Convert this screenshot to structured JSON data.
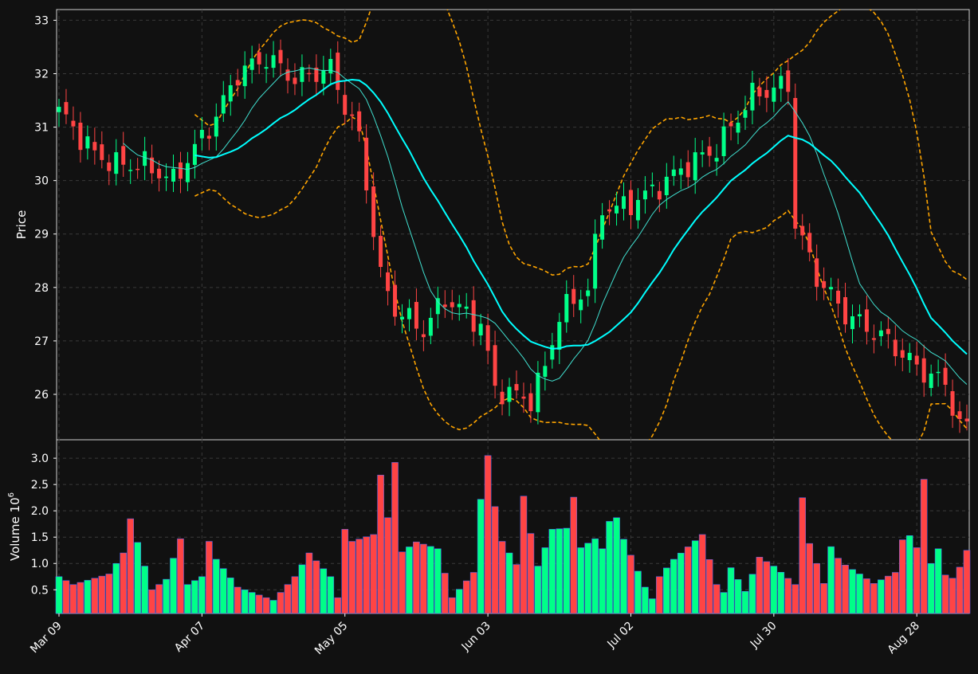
{
  "chart_data": {
    "type": "candlestick",
    "panels": [
      {
        "name": "price",
        "ylabel": "Price",
        "ylim": [
          25.15,
          33.2
        ],
        "yticks": [
          26,
          27,
          28,
          29,
          30,
          31,
          32,
          33
        ]
      },
      {
        "name": "volume",
        "ylabel": "Volume",
        "ylabel_exponent": "6",
        "ylim": [
          0.05,
          3.35
        ],
        "yticks": [
          0.5,
          1.0,
          1.5,
          2.0,
          2.5,
          3.0
        ],
        "unit_multiplier": 1000000
      }
    ],
    "x_ticks": [
      {
        "label": "Mar 09",
        "index": 0
      },
      {
        "label": "Apr 07",
        "index": 20
      },
      {
        "label": "May 05",
        "index": 40
      },
      {
        "label": "Jun 03",
        "index": 60
      },
      {
        "label": "Jul 02",
        "index": 80
      },
      {
        "label": "Jul 30",
        "index": 100
      },
      {
        "label": "Aug 28",
        "index": 120
      }
    ],
    "grid": true,
    "overlays": [
      "moving average (thin, cyan-green)",
      "moving average (thick, cyan)",
      "bollinger bands (dashed, orange)"
    ],
    "colors": {
      "background": "#111111",
      "up": "#00ff88",
      "down": "#ff4444",
      "grid": "#3a3a3a",
      "ma_short": "#40e0d0",
      "ma_long": "#00ffff",
      "bands": "#ffa500"
    },
    "close_path": [
      [
        0,
        31.3
      ],
      [
        5,
        30.5
      ],
      [
        8,
        30.3
      ],
      [
        12,
        30.3
      ],
      [
        16,
        30.0
      ],
      [
        19,
        30.6
      ],
      [
        22,
        31.2
      ],
      [
        25,
        32.0
      ],
      [
        29,
        32.3
      ],
      [
        33,
        31.9
      ],
      [
        38,
        32.1
      ],
      [
        40,
        31.4
      ],
      [
        42,
        30.8
      ],
      [
        45,
        28.2
      ],
      [
        47,
        27.6
      ],
      [
        51,
        27.2
      ],
      [
        54,
        27.8
      ],
      [
        59,
        27.3
      ],
      [
        61,
        26.1
      ],
      [
        66,
        25.9
      ],
      [
        68,
        26.5
      ],
      [
        70,
        27.5
      ],
      [
        74,
        28.0
      ],
      [
        76,
        29.5
      ],
      [
        79,
        29.5
      ],
      [
        83,
        29.8
      ],
      [
        88,
        30.3
      ],
      [
        92,
        30.6
      ],
      [
        97,
        31.6
      ],
      [
        102,
        31.8
      ],
      [
        103,
        29.2
      ],
      [
        106,
        28.2
      ],
      [
        110,
        27.5
      ],
      [
        116,
        27.0
      ],
      [
        120,
        26.5
      ],
      [
        124,
        26.2
      ],
      [
        126,
        25.4
      ]
    ],
    "volume_path": [
      [
        0,
        0.75
      ],
      [
        2,
        0.6
      ],
      [
        7,
        0.8
      ],
      [
        9,
        1.2
      ],
      [
        10,
        1.85
      ],
      [
        13,
        0.5
      ],
      [
        15,
        0.7
      ],
      [
        16,
        1.1
      ],
      [
        17,
        1.47
      ],
      [
        18,
        0.6
      ],
      [
        20,
        0.75
      ],
      [
        21,
        1.42
      ],
      [
        22,
        1.08
      ],
      [
        25,
        0.55
      ],
      [
        30,
        0.3
      ],
      [
        33,
        0.75
      ],
      [
        35,
        1.2
      ],
      [
        38,
        0.75
      ],
      [
        39,
        0.35
      ],
      [
        40,
        1.65
      ],
      [
        41,
        1.42
      ],
      [
        44,
        1.55
      ],
      [
        45,
        2.68
      ],
      [
        46,
        1.87
      ],
      [
        47,
        2.92
      ],
      [
        48,
        1.22
      ],
      [
        50,
        1.41
      ],
      [
        53,
        1.28
      ],
      [
        55,
        0.35
      ],
      [
        58,
        0.83
      ],
      [
        59,
        2.22
      ],
      [
        60,
        3.05
      ],
      [
        61,
        2.08
      ],
      [
        62,
        1.42
      ],
      [
        64,
        0.98
      ],
      [
        65,
        2.28
      ],
      [
        66,
        1.57
      ],
      [
        67,
        0.95
      ],
      [
        69,
        1.65
      ],
      [
        71,
        1.67
      ],
      [
        72,
        2.26
      ],
      [
        73,
        1.3
      ],
      [
        75,
        1.47
      ],
      [
        76,
        1.28
      ],
      [
        77,
        1.8
      ],
      [
        78,
        1.87
      ],
      [
        79,
        1.46
      ],
      [
        82,
        0.55
      ],
      [
        83,
        0.33
      ],
      [
        84,
        0.75
      ],
      [
        86,
        1.08
      ],
      [
        90,
        1.55
      ],
      [
        92,
        0.6
      ],
      [
        93,
        0.45
      ],
      [
        94,
        0.92
      ],
      [
        96,
        0.47
      ],
      [
        98,
        1.12
      ],
      [
        100,
        0.95
      ],
      [
        103,
        0.6
      ],
      [
        104,
        2.25
      ],
      [
        105,
        1.38
      ],
      [
        107,
        0.62
      ],
      [
        108,
        1.32
      ],
      [
        109,
        1.1
      ],
      [
        110,
        0.97
      ],
      [
        112,
        0.8
      ],
      [
        114,
        0.62
      ],
      [
        117,
        0.83
      ],
      [
        118,
        1.45
      ],
      [
        119,
        1.53
      ],
      [
        120,
        1.3
      ],
      [
        121,
        2.6
      ],
      [
        122,
        1.0
      ],
      [
        123,
        1.28
      ],
      [
        124,
        0.78
      ],
      [
        125,
        0.72
      ],
      [
        126,
        0.93
      ],
      [
        127,
        1.25
      ]
    ]
  }
}
